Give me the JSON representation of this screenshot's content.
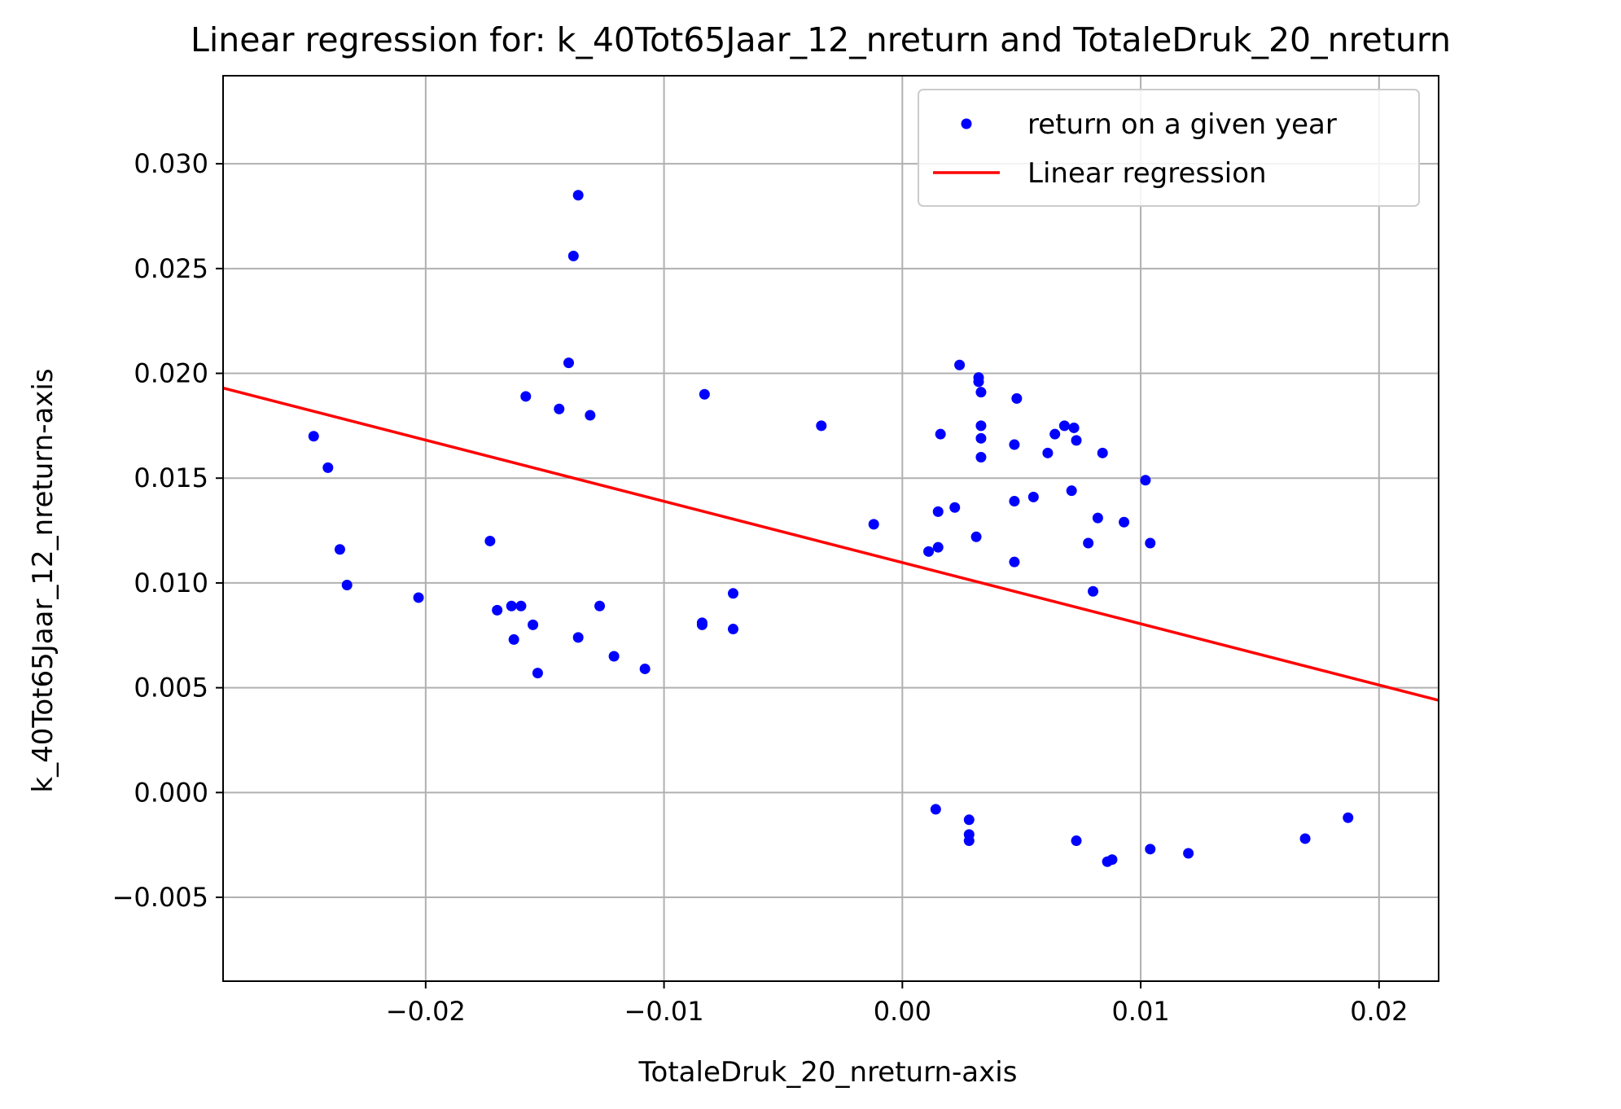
{
  "chart_data": {
    "type": "scatter",
    "title": "Linear regression for: k_40Tot65Jaar_12_nreturn and TotaleDruk_20_nreturn",
    "xlabel": "TotaleDruk_20_nreturn-axis",
    "ylabel": "k_40Tot65Jaar_12_nreturn-axis",
    "xlim": [
      -0.0285,
      0.0225
    ],
    "ylim": [
      -0.009,
      0.0342
    ],
    "xticks": [
      -0.02,
      -0.01,
      0.0,
      0.01,
      0.02
    ],
    "xtick_labels": [
      "−0.02",
      "−0.01",
      "0.00",
      "0.01",
      "0.02"
    ],
    "yticks": [
      -0.005,
      0.0,
      0.005,
      0.01,
      0.015,
      0.02,
      0.025,
      0.03
    ],
    "ytick_labels": [
      "−0.005",
      "0.000",
      "0.005",
      "0.010",
      "0.015",
      "0.020",
      "0.025",
      "0.030"
    ],
    "grid": true,
    "legend_position": "top-right",
    "series": [
      {
        "name": "return on a given year",
        "kind": "scatter",
        "color": "#0000ff",
        "points": [
          [
            -0.0247,
            0.017
          ],
          [
            -0.0241,
            0.0155
          ],
          [
            -0.0236,
            0.0116
          ],
          [
            -0.0233,
            0.0099
          ],
          [
            -0.0203,
            0.0093
          ],
          [
            -0.0173,
            0.012
          ],
          [
            -0.017,
            0.0087
          ],
          [
            -0.0164,
            0.0089
          ],
          [
            -0.0163,
            0.0073
          ],
          [
            -0.016,
            0.0089
          ],
          [
            -0.0158,
            0.0189
          ],
          [
            -0.0155,
            0.008
          ],
          [
            -0.0153,
            0.0057
          ],
          [
            -0.0144,
            0.0183
          ],
          [
            -0.014,
            0.0205
          ],
          [
            -0.0138,
            0.0256
          ],
          [
            -0.0136,
            0.0285
          ],
          [
            -0.0136,
            0.0074
          ],
          [
            -0.0131,
            0.018
          ],
          [
            -0.0127,
            0.0089
          ],
          [
            -0.0121,
            0.0065
          ],
          [
            -0.0108,
            0.0059
          ],
          [
            -0.0083,
            0.019
          ],
          [
            -0.0084,
            0.008
          ],
          [
            -0.0084,
            0.0081
          ],
          [
            -0.0071,
            0.0095
          ],
          [
            -0.0071,
            0.0078
          ],
          [
            -0.0034,
            0.0175
          ],
          [
            -0.0012,
            0.0128
          ],
          [
            0.0011,
            0.0115
          ],
          [
            0.0015,
            0.0117
          ],
          [
            0.0015,
            0.0134
          ],
          [
            0.0016,
            0.0171
          ],
          [
            0.0022,
            0.0136
          ],
          [
            0.0024,
            0.0204
          ],
          [
            0.0031,
            0.0122
          ],
          [
            0.0032,
            0.0198
          ],
          [
            0.0032,
            0.0196
          ],
          [
            0.0033,
            0.0191
          ],
          [
            0.0033,
            0.0175
          ],
          [
            0.0033,
            0.0169
          ],
          [
            0.0033,
            0.016
          ],
          [
            0.0047,
            0.011
          ],
          [
            0.0047,
            0.0139
          ],
          [
            0.0047,
            0.0166
          ],
          [
            0.0048,
            0.0188
          ],
          [
            0.0055,
            0.0141
          ],
          [
            0.0061,
            0.0162
          ],
          [
            0.0064,
            0.0171
          ],
          [
            0.0068,
            0.0175
          ],
          [
            0.0071,
            0.0144
          ],
          [
            0.0072,
            0.0174
          ],
          [
            0.0073,
            0.0168
          ],
          [
            0.0078,
            0.0119
          ],
          [
            0.008,
            0.0096
          ],
          [
            0.0082,
            0.0131
          ],
          [
            0.0084,
            0.0162
          ],
          [
            0.0093,
            0.0129
          ],
          [
            0.0102,
            0.0149
          ],
          [
            0.0104,
            0.0119
          ],
          [
            0.0014,
            -0.0008
          ],
          [
            0.0028,
            -0.0013
          ],
          [
            0.0028,
            -0.002
          ],
          [
            0.0028,
            -0.0023
          ],
          [
            0.0073,
            -0.0023
          ],
          [
            0.0086,
            -0.0033
          ],
          [
            0.0088,
            -0.0032
          ],
          [
            0.0104,
            -0.0027
          ],
          [
            0.012,
            -0.0029
          ],
          [
            0.0169,
            -0.0022
          ],
          [
            0.0187,
            -0.0012
          ]
        ]
      },
      {
        "name": "Linear regression",
        "kind": "line",
        "color": "#ff0000",
        "points": [
          [
            -0.0285,
            0.0193
          ],
          [
            0.0225,
            0.0044
          ]
        ]
      }
    ]
  }
}
